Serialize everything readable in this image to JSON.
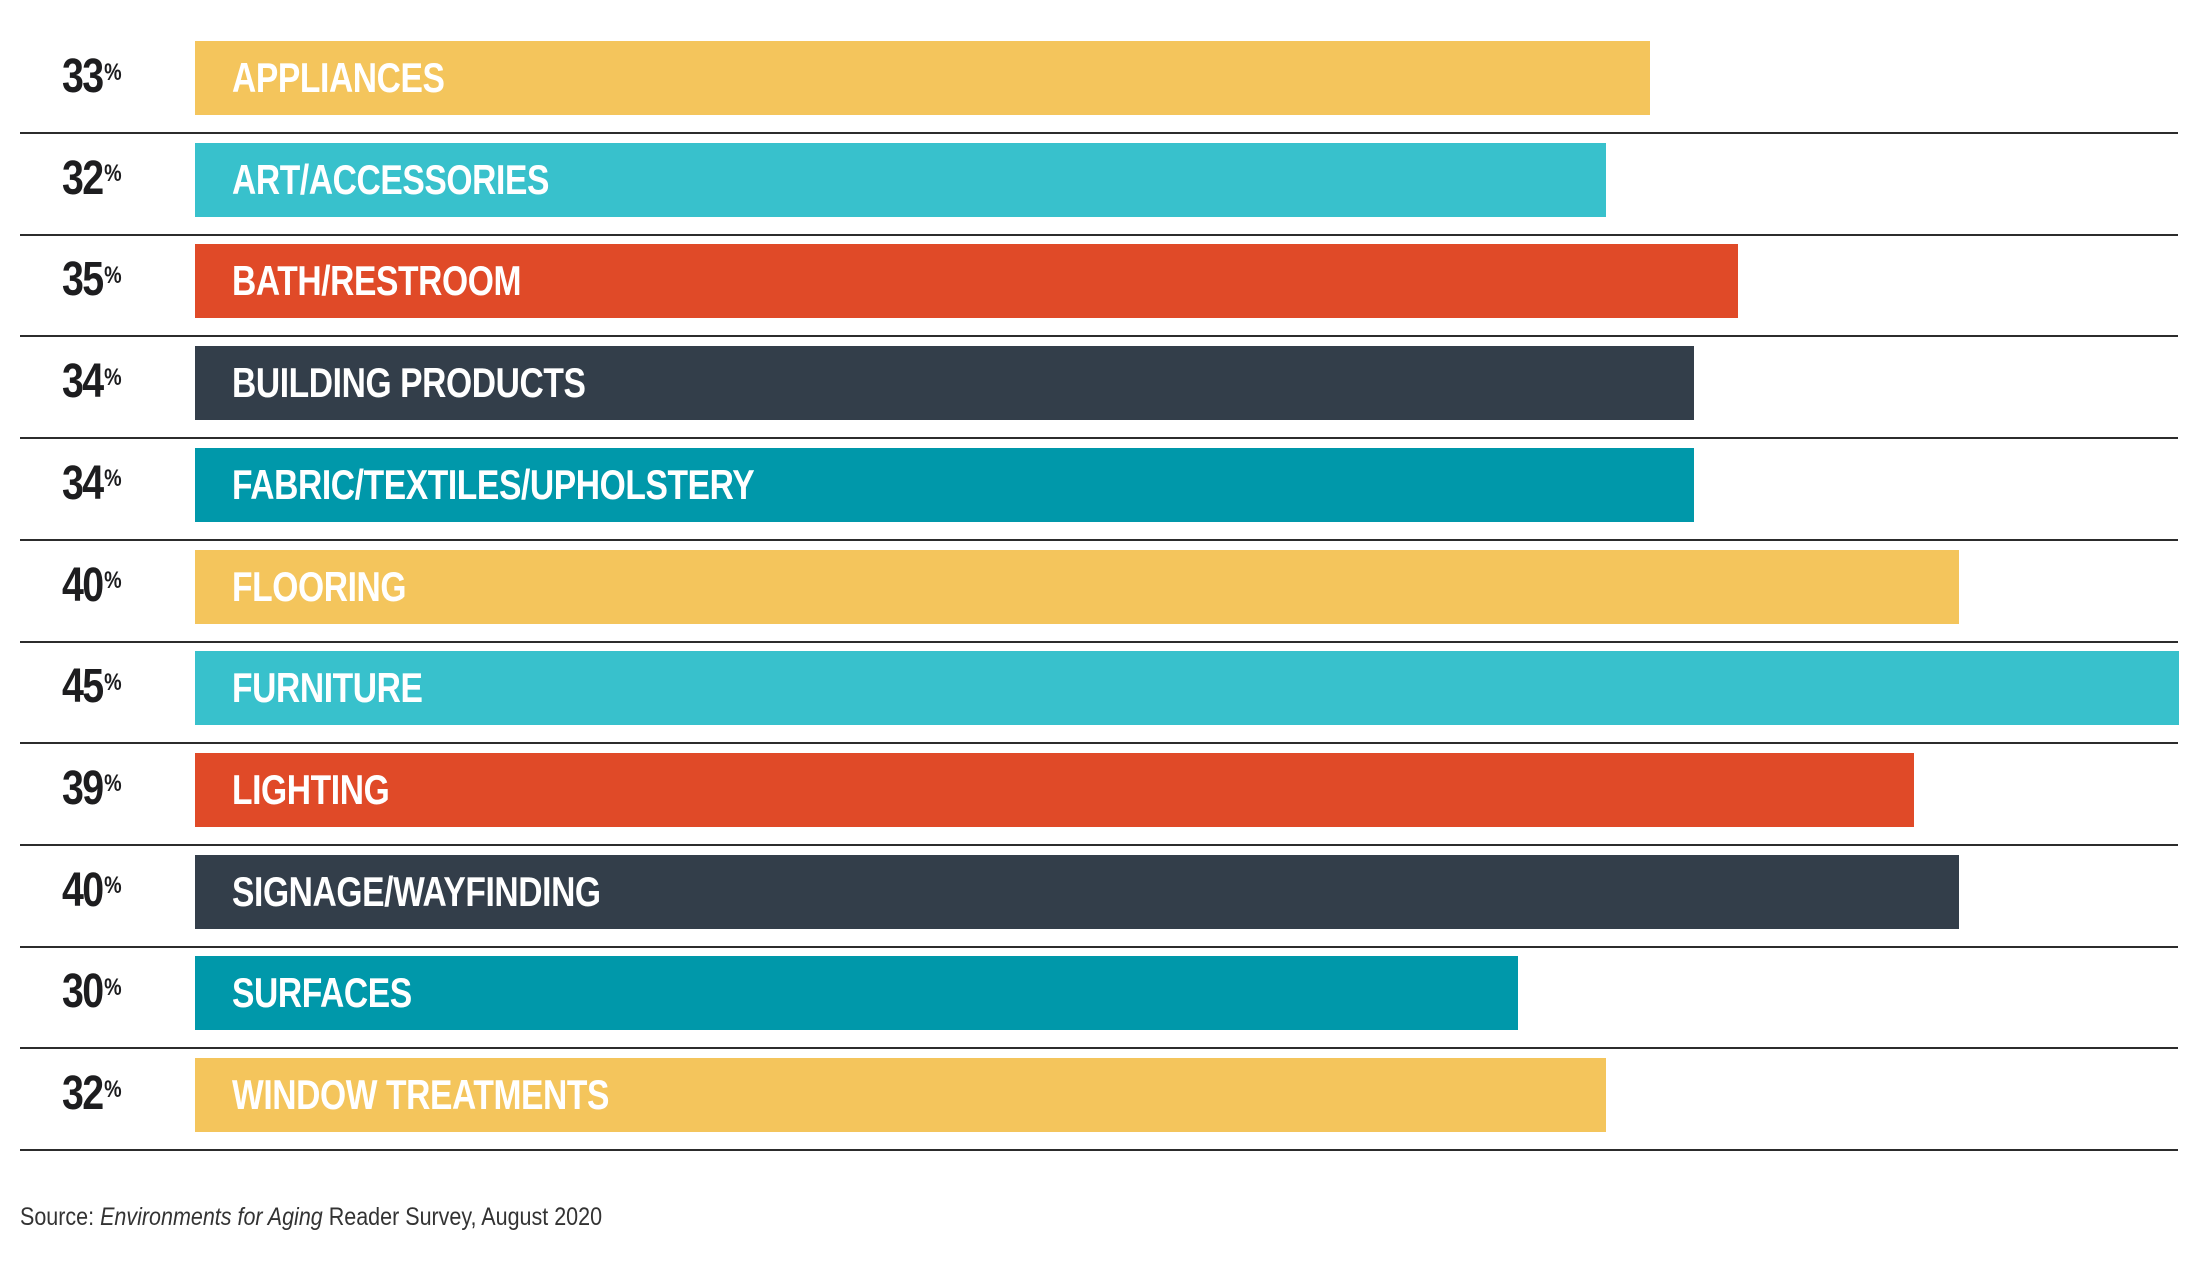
{
  "chart_data": {
    "type": "bar",
    "orientation": "horizontal",
    "categories": [
      "APPLIANCES",
      "ART/ACCESSORIES",
      "BATH/RESTROOM",
      "BUILDING PRODUCTS",
      "FABRIC/TEXTILES/UPHOLSTERY",
      "FLOORING",
      "FURNITURE",
      "LIGHTING",
      "SIGNAGE/WAYFINDING",
      "SURFACES",
      "WINDOW TREATMENTS"
    ],
    "values": [
      33,
      32,
      35,
      34,
      34,
      40,
      45,
      39,
      40,
      30,
      32
    ],
    "value_labels": [
      "33",
      "32",
      "35",
      "34",
      "34",
      "40",
      "45",
      "39",
      "40",
      "30",
      "32"
    ],
    "value_suffix": "%",
    "bar_colors": [
      "#F4C55C",
      "#38C1CC",
      "#E04A28",
      "#333E4A",
      "#0098AA",
      "#F4C55C",
      "#38C1CC",
      "#E04A28",
      "#333E4A",
      "#0098AA",
      "#F4C55C"
    ],
    "xlim": [
      0,
      45
    ],
    "grid": false,
    "legend": "none"
  },
  "source": {
    "prefix": "Source: ",
    "publication": "Environments for Aging",
    "suffix": " Reader Survey, August 2020"
  }
}
